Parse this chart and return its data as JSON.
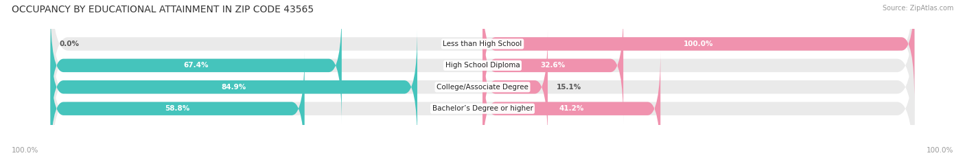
{
  "title": "OCCUPANCY BY EDUCATIONAL ATTAINMENT IN ZIP CODE 43565",
  "source": "Source: ZipAtlas.com",
  "categories": [
    "Less than High School",
    "High School Diploma",
    "College/Associate Degree",
    "Bachelor’s Degree or higher"
  ],
  "owner_pct": [
    0.0,
    67.4,
    84.9,
    58.8
  ],
  "renter_pct": [
    100.0,
    32.6,
    15.1,
    41.2
  ],
  "owner_color": "#45C4BC",
  "renter_color": "#F092AE",
  "bg_row_color": "#EAEAEA",
  "title_fontsize": 10,
  "bar_height": 0.62,
  "axis_label_left": "100.0%",
  "axis_label_right": "100.0%"
}
